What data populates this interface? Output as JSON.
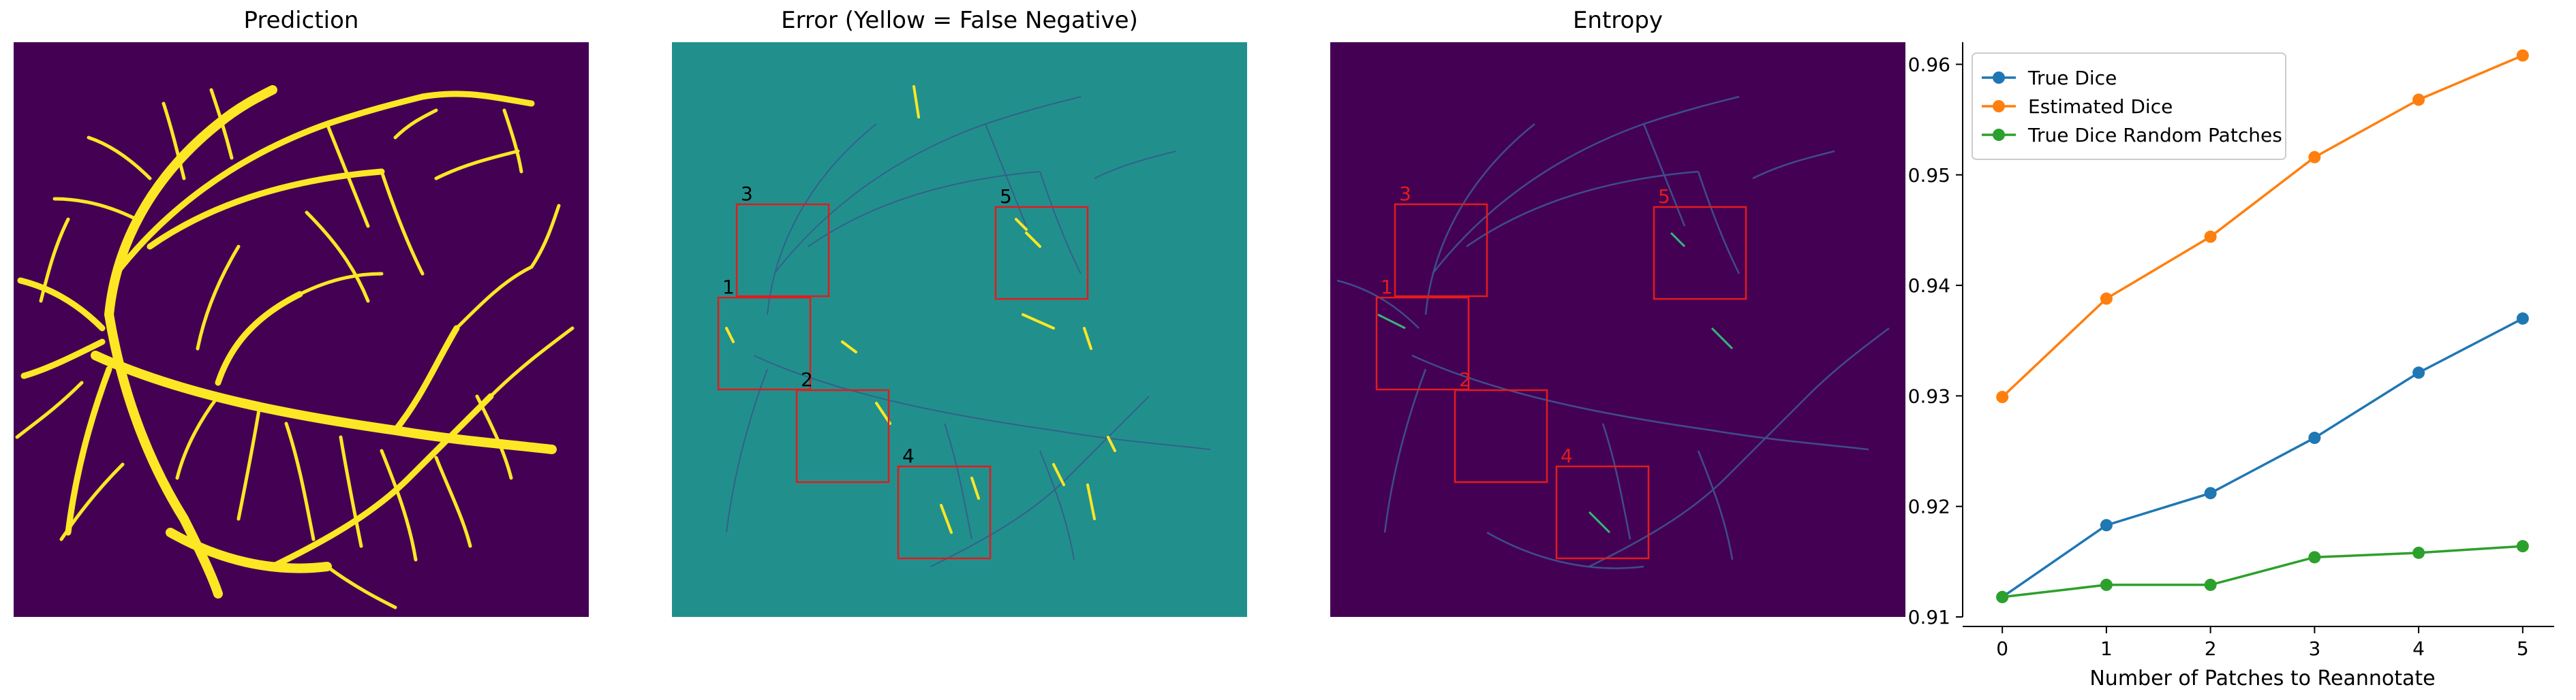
{
  "panels": {
    "prediction": {
      "title": "Prediction"
    },
    "error": {
      "title": "Error (Yellow = False Negative)"
    },
    "entropy": {
      "title": "Entropy"
    }
  },
  "patch_labels": [
    "1",
    "2",
    "3",
    "4",
    "5"
  ],
  "colors": {
    "viridis_dark": "#440154",
    "viridis_teal": "#21908d",
    "viridis_yellow": "#fde725",
    "box_red": "#e41a1c",
    "series_blue": "#1f77b4",
    "series_orange": "#ff7f0e",
    "series_green": "#2ca02c"
  },
  "chart_data": {
    "type": "line",
    "title": "",
    "xlabel": "Number of Patches to Reannotate",
    "ylabel": "",
    "x": [
      0,
      1,
      2,
      3,
      4,
      5
    ],
    "xticks": [
      "0",
      "1",
      "2",
      "3",
      "4",
      "5"
    ],
    "yticks": [
      "0.91",
      "0.92",
      "0.93",
      "0.94",
      "0.95",
      "0.96"
    ],
    "ylim": [
      0.91,
      0.962
    ],
    "legend_position": "top-left",
    "series": [
      {
        "name": "True Dice",
        "color": "#1f77b4",
        "values": [
          0.9118,
          0.9183,
          0.9212,
          0.9262,
          0.9321,
          0.937
        ]
      },
      {
        "name": "Estimated Dice",
        "color": "#ff7f0e",
        "values": [
          0.9299,
          0.9388,
          0.9444,
          0.9516,
          0.9568,
          0.9608
        ]
      },
      {
        "name": "True Dice Random Patches",
        "color": "#2ca02c",
        "values": [
          0.9118,
          0.9129,
          0.9129,
          0.9154,
          0.9158,
          0.9164
        ]
      }
    ]
  }
}
